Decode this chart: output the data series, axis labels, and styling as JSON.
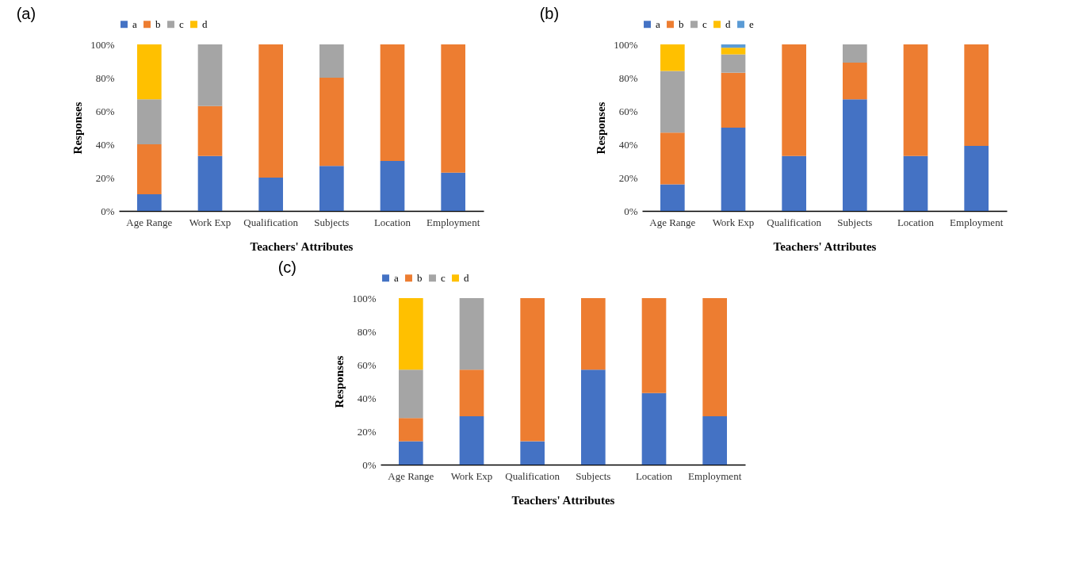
{
  "chart_data": [
    {
      "type": "bar",
      "title": "(a)",
      "stacked": true,
      "xlabel": "Teachers' Attributes",
      "ylabel": "Responses",
      "legend": "top",
      "grid": false,
      "categories": [
        "Age Range",
        "Work Exp",
        "Qualification",
        "Subjects",
        "Location",
        "Employment"
      ],
      "ylim": [
        0,
        100
      ],
      "yticks": [
        {
          "value": 0,
          "label": "0%"
        },
        {
          "value": 20,
          "label": "20%"
        },
        {
          "value": 40,
          "label": "40%"
        },
        {
          "value": 60,
          "label": "60%"
        },
        {
          "value": 80,
          "label": "80%"
        },
        {
          "value": 100,
          "label": "100%"
        }
      ],
      "series": [
        {
          "name": "a",
          "color": "#4472c4",
          "values": [
            10,
            33,
            20,
            27,
            30,
            23
          ]
        },
        {
          "name": "b",
          "color": "#ed7d31",
          "values": [
            30,
            30,
            80,
            53,
            70,
            77
          ]
        },
        {
          "name": "c",
          "color": "#a5a5a5",
          "values": [
            27,
            37,
            null,
            20,
            null,
            null
          ]
        },
        {
          "name": "d",
          "color": "#ffc000",
          "values": [
            33,
            null,
            null,
            null,
            null,
            null
          ]
        }
      ]
    },
    {
      "type": "bar",
      "title": "(b)",
      "stacked": true,
      "xlabel": "Teachers' Attributes",
      "ylabel": "Responses",
      "legend": "top",
      "grid": false,
      "categories": [
        "Age Range",
        "Work Exp",
        "Qualification",
        "Subjects",
        "Location",
        "Employment"
      ],
      "ylim": [
        0,
        100
      ],
      "yticks": [
        {
          "value": 0,
          "label": "0%"
        },
        {
          "value": 20,
          "label": "20%"
        },
        {
          "value": 40,
          "label": "40%"
        },
        {
          "value": 60,
          "label": "60%"
        },
        {
          "value": 80,
          "label": "80%"
        },
        {
          "value": 100,
          "label": "100%"
        }
      ],
      "series": [
        {
          "name": "a",
          "color": "#4472c4",
          "values": [
            16,
            50,
            33,
            67,
            33,
            39
          ]
        },
        {
          "name": "b",
          "color": "#ed7d31",
          "values": [
            31,
            33,
            67,
            22,
            67,
            61
          ]
        },
        {
          "name": "c",
          "color": "#a5a5a5",
          "values": [
            37,
            11,
            null,
            11,
            null,
            null
          ]
        },
        {
          "name": "d",
          "color": "#ffc000",
          "values": [
            16,
            4,
            null,
            null,
            null,
            null
          ]
        },
        {
          "name": "e",
          "color": "#5b9bd5",
          "values": [
            null,
            2,
            null,
            null,
            null,
            null
          ]
        }
      ]
    },
    {
      "type": "bar",
      "title": "(c)",
      "stacked": true,
      "xlabel": "Teachers' Attributes",
      "ylabel": "Responses",
      "legend": "top",
      "grid": false,
      "categories": [
        "Age Range",
        "Work Exp",
        "Qualification",
        "Subjects",
        "Location",
        "Employment"
      ],
      "ylim": [
        0,
        100
      ],
      "yticks": [
        {
          "value": 0,
          "label": "0%"
        },
        {
          "value": 20,
          "label": "20%"
        },
        {
          "value": 40,
          "label": "40%"
        },
        {
          "value": 60,
          "label": "60%"
        },
        {
          "value": 80,
          "label": "80%"
        },
        {
          "value": 100,
          "label": "100%"
        }
      ],
      "series": [
        {
          "name": "a",
          "color": "#4472c4",
          "values": [
            14,
            29,
            14,
            57,
            43,
            29
          ]
        },
        {
          "name": "b",
          "color": "#ed7d31",
          "values": [
            14,
            28,
            86,
            43,
            57,
            71
          ]
        },
        {
          "name": "c",
          "color": "#a5a5a5",
          "values": [
            29,
            43,
            null,
            null,
            null,
            null
          ]
        },
        {
          "name": "d",
          "color": "#ffc000",
          "values": [
            43,
            null,
            null,
            null,
            null,
            null
          ]
        }
      ]
    }
  ]
}
